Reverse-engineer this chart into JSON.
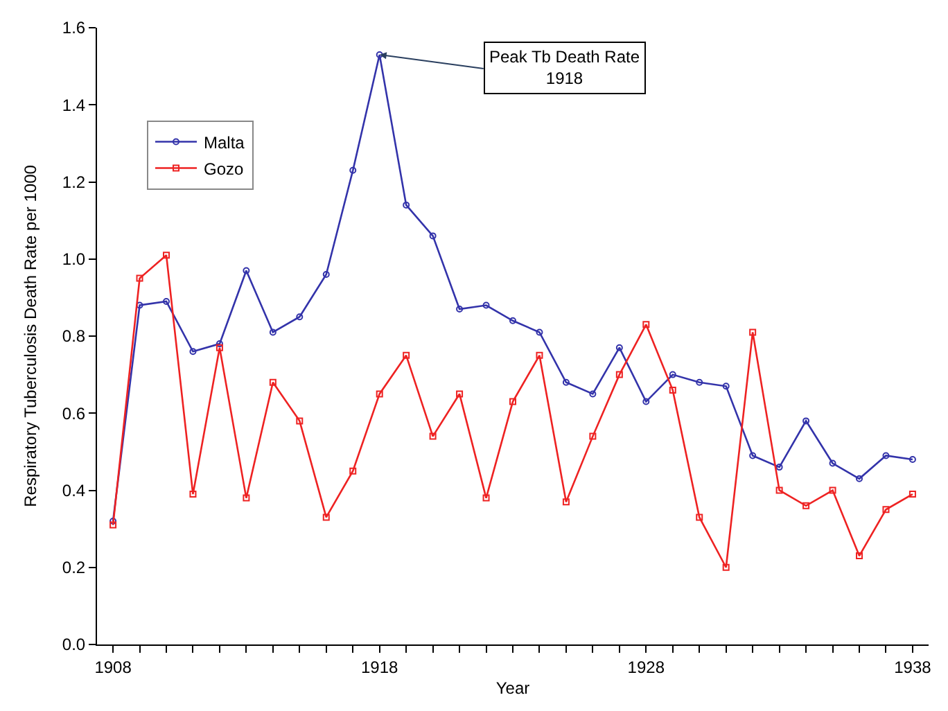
{
  "chart_data": {
    "type": "line",
    "xlabel": "Year",
    "ylabel": "Respiratory Tuberculosis Death Rate per 1000",
    "x": [
      1908,
      1909,
      1910,
      1911,
      1912,
      1913,
      1914,
      1915,
      1916,
      1917,
      1918,
      1919,
      1920,
      1921,
      1922,
      1923,
      1924,
      1925,
      1926,
      1927,
      1928,
      1929,
      1930,
      1931,
      1932,
      1933,
      1934,
      1935,
      1936,
      1937,
      1938
    ],
    "series": [
      {
        "name": "Malta",
        "color": "#3333aa",
        "marker": "circle",
        "values": [
          0.32,
          0.88,
          0.89,
          0.76,
          0.78,
          0.97,
          0.81,
          0.85,
          0.96,
          1.23,
          1.53,
          1.14,
          1.06,
          0.87,
          0.88,
          0.84,
          0.81,
          0.68,
          0.65,
          0.77,
          0.63,
          0.7,
          0.68,
          0.67,
          0.49,
          0.46,
          0.58,
          0.47,
          0.43,
          0.49,
          0.48
        ]
      },
      {
        "name": "Gozo",
        "color": "#ee2222",
        "marker": "square",
        "values": [
          0.31,
          0.95,
          1.01,
          0.39,
          0.77,
          0.38,
          0.68,
          0.58,
          0.33,
          0.45,
          0.65,
          0.75,
          0.54,
          0.65,
          0.38,
          0.63,
          0.75,
          0.37,
          0.54,
          0.7,
          0.83,
          0.66,
          0.33,
          0.2,
          0.81,
          0.4,
          0.36,
          0.4,
          0.23,
          0.35,
          0.39
        ]
      }
    ],
    "xlim": [
      1907.4,
      1938.6
    ],
    "xticks": [
      1908,
      {
        "value": 1909,
        "label": null
      },
      {
        "value": 1910,
        "label": null
      },
      {
        "value": 1911,
        "label": null
      },
      {
        "value": 1912,
        "label": null
      },
      {
        "value": 1913,
        "label": null
      },
      {
        "value": 1914,
        "label": null
      },
      {
        "value": 1915,
        "label": null
      },
      {
        "value": 1916,
        "label": null
      },
      {
        "value": 1917,
        "label": null
      },
      1918,
      {
        "value": 1919,
        "label": null
      },
      {
        "value": 1920,
        "label": null
      },
      {
        "value": 1921,
        "label": null
      },
      {
        "value": 1922,
        "label": null
      },
      {
        "value": 1923,
        "label": null
      },
      {
        "value": 1924,
        "label": null
      },
      {
        "value": 1925,
        "label": null
      },
      {
        "value": 1926,
        "label": null
      },
      {
        "value": 1927,
        "label": null
      },
      1928,
      {
        "value": 1929,
        "label": null
      },
      {
        "value": 1930,
        "label": null
      },
      {
        "value": 1931,
        "label": null
      },
      {
        "value": 1932,
        "label": null
      },
      {
        "value": 1933,
        "label": null
      },
      {
        "value": 1934,
        "label": null
      },
      {
        "value": 1935,
        "label": null
      },
      {
        "value": 1936,
        "label": null
      },
      {
        "value": 1937,
        "label": null
      },
      1938
    ],
    "ylim": [
      0,
      1.6
    ],
    "yticks": [
      {
        "value": 0,
        "label": "0.0"
      },
      {
        "value": 0.2,
        "label": "0.2"
      },
      {
        "value": 0.4,
        "label": "0.4"
      },
      {
        "value": 0.6,
        "label": "0.6"
      },
      {
        "value": 0.8,
        "label": "0.8"
      },
      {
        "value": 1.0,
        "label": "1.0"
      },
      {
        "value": 1.2,
        "label": "1.2"
      },
      {
        "value": 1.4,
        "label": "1.4"
      },
      {
        "value": 1.6,
        "label": "1.6"
      }
    ],
    "annotations": [
      {
        "text": "Peak Tb Death Rate\n1918",
        "x": 1918,
        "y": 1.53
      }
    ],
    "legend": "top left",
    "line_style": "solid"
  }
}
